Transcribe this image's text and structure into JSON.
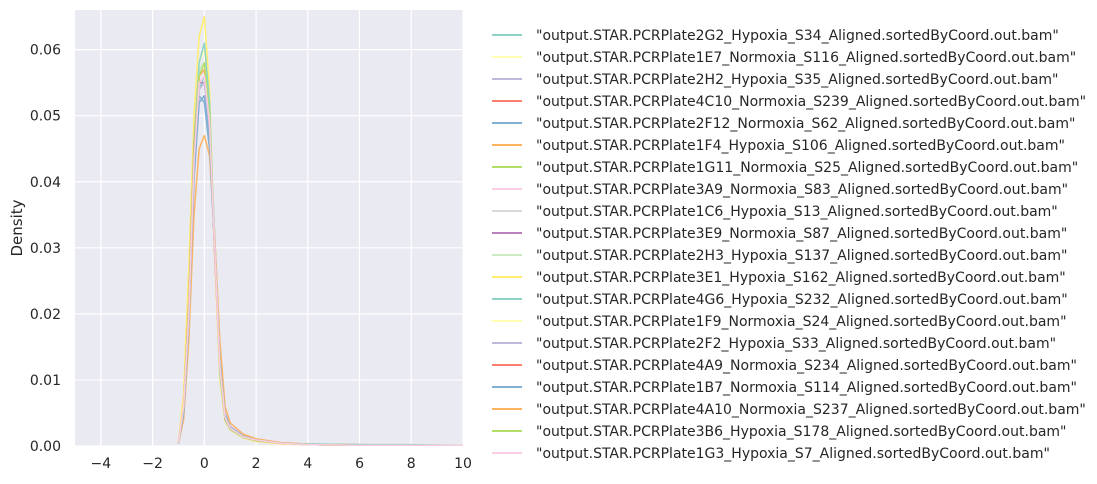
{
  "chart_data": {
    "type": "line",
    "title": "",
    "xlabel": "",
    "ylabel": "Density",
    "xlim": [
      -5,
      10
    ],
    "ylim": [
      0,
      0.066
    ],
    "x_ticks": [
      -4,
      -2,
      0,
      2,
      4,
      6,
      8,
      10
    ],
    "y_ticks": [
      0.0,
      0.01,
      0.02,
      0.03,
      0.04,
      0.05,
      0.06
    ],
    "y_tick_labels": [
      "0.00",
      "0.01",
      "0.02",
      "0.03",
      "0.04",
      "0.05",
      "0.06"
    ],
    "x_tick_labels": [
      "−4",
      "−2",
      "0",
      "2",
      "4",
      "6",
      "8",
      "10"
    ],
    "grid": true,
    "background": "#eaeaf2",
    "legend_position": "outside-right",
    "series": [
      {
        "name": "\"output.STAR.PCRPlate2G2_Hypoxia_S34_Aligned.sortedByCoord.out.bam\"",
        "color": "#8dd3c7",
        "x": [
          -1.0,
          -0.8,
          -0.6,
          -0.4,
          -0.2,
          0.0,
          0.2,
          0.4,
          0.6,
          0.8,
          1.0,
          1.5,
          2.0,
          3.0,
          4.0,
          6.0,
          8.0,
          10.0
        ],
        "y": [
          0.0005,
          0.006,
          0.02,
          0.042,
          0.054,
          0.056,
          0.05,
          0.032,
          0.013,
          0.0045,
          0.0028,
          0.0015,
          0.0009,
          0.0004,
          0.0003,
          0.0002,
          0.00015,
          0.0001
        ]
      },
      {
        "name": "\"output.STAR.PCRPlate1E7_Normoxia_S116_Aligned.sortedByCoord.out.bam\"",
        "color": "#ffffb3",
        "x": [
          -1.0,
          -0.8,
          -0.6,
          -0.4,
          -0.2,
          0.0,
          0.2,
          0.4,
          0.6,
          0.8,
          1.0,
          1.5,
          2.0,
          3.0,
          4.0,
          6.0,
          8.0,
          10.0
        ],
        "y": [
          0.0006,
          0.007,
          0.024,
          0.046,
          0.058,
          0.06,
          0.052,
          0.03,
          0.011,
          0.004,
          0.0025,
          0.0013,
          0.0008,
          0.0004,
          0.0002,
          0.0001,
          0.0001,
          0.0001
        ]
      },
      {
        "name": "\"output.STAR.PCRPlate2H2_Hypoxia_S35_Aligned.sortedByCoord.out.bam\"",
        "color": "#bebada",
        "x": [
          -1.0,
          -0.8,
          -0.6,
          -0.4,
          -0.2,
          0.0,
          0.2,
          0.4,
          0.6,
          0.8,
          1.0,
          1.5,
          2.0,
          3.0,
          4.0,
          6.0,
          8.0,
          10.0
        ],
        "y": [
          0.0004,
          0.005,
          0.018,
          0.04,
          0.052,
          0.053,
          0.047,
          0.031,
          0.014,
          0.005,
          0.003,
          0.0016,
          0.001,
          0.0005,
          0.0003,
          0.0002,
          0.0001,
          0.0001
        ]
      },
      {
        "name": "\"output.STAR.PCRPlate4C10_Normoxia_S239_Aligned.sortedByCoord.out.bam\"",
        "color": "#fb8072",
        "x": [
          -1.0,
          -0.8,
          -0.6,
          -0.4,
          -0.2,
          0.0,
          0.2,
          0.4,
          0.6,
          0.8,
          1.0,
          1.5,
          2.0,
          3.0,
          4.0,
          6.0,
          8.0,
          10.0
        ],
        "y": [
          0.0005,
          0.006,
          0.021,
          0.044,
          0.056,
          0.057,
          0.049,
          0.029,
          0.012,
          0.0042,
          0.0026,
          0.0014,
          0.0009,
          0.0004,
          0.0002,
          0.0001,
          0.0001,
          0.0001
        ]
      },
      {
        "name": "\"output.STAR.PCRPlate2F12_Normoxia_S62_Aligned.sortedByCoord.out.bam\"",
        "color": "#80b1d3",
        "x": [
          -1.0,
          -0.8,
          -0.6,
          -0.4,
          -0.2,
          0.0,
          0.2,
          0.4,
          0.6,
          0.8,
          1.0,
          1.5,
          2.0,
          3.0,
          4.0,
          6.0,
          8.0,
          10.0
        ],
        "y": [
          0.0004,
          0.005,
          0.019,
          0.041,
          0.053,
          0.052,
          0.045,
          0.03,
          0.013,
          0.0048,
          0.0027,
          0.0015,
          0.0009,
          0.0004,
          0.0002,
          0.0001,
          0.0001,
          0.0001
        ]
      },
      {
        "name": "\"output.STAR.PCRPlate1F4_Hypoxia_S106_Aligned.sortedByCoord.out.bam\"",
        "color": "#fdb462",
        "x": [
          -1.0,
          -0.8,
          -0.6,
          -0.4,
          -0.2,
          0.0,
          0.2,
          0.4,
          0.6,
          0.8,
          1.0,
          1.5,
          2.0,
          3.0,
          4.0,
          6.0,
          8.0,
          10.0
        ],
        "y": [
          0.0004,
          0.004,
          0.016,
          0.035,
          0.045,
          0.047,
          0.044,
          0.032,
          0.016,
          0.006,
          0.0035,
          0.0018,
          0.0011,
          0.0005,
          0.0003,
          0.0002,
          0.0001,
          0.0001
        ]
      },
      {
        "name": "\"output.STAR.PCRPlate1G11_Normoxia_S25_Aligned.sortedByCoord.out.bam\"",
        "color": "#b3de69",
        "x": [
          -1.0,
          -0.8,
          -0.6,
          -0.4,
          -0.2,
          0.0,
          0.2,
          0.4,
          0.6,
          0.8,
          1.0,
          1.5,
          2.0,
          3.0,
          4.0,
          6.0,
          8.0,
          10.0
        ],
        "y": [
          0.0005,
          0.006,
          0.022,
          0.045,
          0.057,
          0.058,
          0.05,
          0.03,
          0.012,
          0.0042,
          0.0026,
          0.0014,
          0.0008,
          0.0004,
          0.0002,
          0.0001,
          0.0001,
          0.0001
        ]
      },
      {
        "name": "\"output.STAR.PCRPlate3A9_Normoxia_S83_Aligned.sortedByCoord.out.bam\"",
        "color": "#fccde5",
        "x": [
          -1.0,
          -0.8,
          -0.6,
          -0.4,
          -0.2,
          0.0,
          0.2,
          0.4,
          0.6,
          0.8,
          1.0,
          1.5,
          2.0,
          3.0,
          4.0,
          6.0,
          8.0,
          10.0
        ],
        "y": [
          0.0005,
          0.006,
          0.02,
          0.043,
          0.055,
          0.056,
          0.049,
          0.031,
          0.013,
          0.0045,
          0.0027,
          0.0015,
          0.0009,
          0.0004,
          0.0002,
          0.0001,
          0.0001,
          0.0001
        ]
      },
      {
        "name": "\"output.STAR.PCRPlate1C6_Hypoxia_S13_Aligned.sortedByCoord.out.bam\"",
        "color": "#d9d9d9",
        "x": [
          -1.0,
          -0.8,
          -0.6,
          -0.4,
          -0.2,
          0.0,
          0.2,
          0.4,
          0.6,
          0.8,
          1.0,
          1.5,
          2.0,
          3.0,
          4.0,
          6.0,
          8.0,
          10.0
        ],
        "y": [
          0.0005,
          0.005,
          0.019,
          0.042,
          0.054,
          0.055,
          0.048,
          0.031,
          0.013,
          0.0046,
          0.0028,
          0.0015,
          0.0009,
          0.0004,
          0.0002,
          0.0001,
          0.0001,
          0.0001
        ]
      },
      {
        "name": "\"output.STAR.PCRPlate3E9_Normoxia_S87_Aligned.sortedByCoord.out.bam\"",
        "color": "#bc80bd",
        "x": [
          -1.0,
          -0.8,
          -0.6,
          -0.4,
          -0.2,
          0.0,
          0.2,
          0.4,
          0.6,
          0.8,
          1.0,
          1.5,
          2.0,
          3.0,
          4.0,
          6.0,
          8.0,
          10.0
        ],
        "y": [
          0.0005,
          0.006,
          0.021,
          0.044,
          0.055,
          0.055,
          0.048,
          0.03,
          0.012,
          0.0044,
          0.0027,
          0.0014,
          0.0009,
          0.0004,
          0.0002,
          0.0001,
          0.0001,
          0.0001
        ]
      },
      {
        "name": "\"output.STAR.PCRPlate2H3_Hypoxia_S137_Aligned.sortedByCoord.out.bam\"",
        "color": "#ccebc5",
        "x": [
          -1.0,
          -0.8,
          -0.6,
          -0.4,
          -0.2,
          0.0,
          0.2,
          0.4,
          0.6,
          0.8,
          1.0,
          1.5,
          2.0,
          3.0,
          4.0,
          6.0,
          8.0,
          10.0
        ],
        "y": [
          0.0005,
          0.006,
          0.021,
          0.045,
          0.057,
          0.058,
          0.05,
          0.03,
          0.012,
          0.0043,
          0.0026,
          0.0014,
          0.0008,
          0.0004,
          0.0002,
          0.0001,
          0.0001,
          0.0001
        ]
      },
      {
        "name": "\"output.STAR.PCRPlate3E1_Hypoxia_S162_Aligned.sortedByCoord.out.bam\"",
        "color": "#ffed6f",
        "x": [
          -1.0,
          -0.8,
          -0.6,
          -0.4,
          -0.2,
          0.0,
          0.2,
          0.4,
          0.6,
          0.8,
          1.0,
          1.5,
          2.0,
          3.0,
          4.0,
          6.0,
          8.0,
          10.0
        ],
        "y": [
          0.0006,
          0.008,
          0.027,
          0.05,
          0.062,
          0.065,
          0.054,
          0.029,
          0.01,
          0.0038,
          0.0024,
          0.0012,
          0.0007,
          0.0003,
          0.0002,
          0.0001,
          0.0001,
          0.0001
        ]
      },
      {
        "name": "\"output.STAR.PCRPlate4G6_Hypoxia_S232_Aligned.sortedByCoord.out.bam\"",
        "color": "#8dd3c7",
        "x": [
          -1.0,
          -0.8,
          -0.6,
          -0.4,
          -0.2,
          0.0,
          0.2,
          0.4,
          0.6,
          0.8,
          1.0,
          1.5,
          2.0,
          3.0,
          4.0,
          6.0,
          8.0,
          10.0
        ],
        "y": [
          0.0005,
          0.006,
          0.022,
          0.046,
          0.058,
          0.061,
          0.052,
          0.03,
          0.011,
          0.004,
          0.0025,
          0.0013,
          0.0008,
          0.0004,
          0.0003,
          0.0002,
          0.0002,
          0.0001
        ]
      },
      {
        "name": "\"output.STAR.PCRPlate1F9_Normoxia_S24_Aligned.sortedByCoord.out.bam\"",
        "color": "#ffffb3",
        "x": [
          -1.0,
          -0.8,
          -0.6,
          -0.4,
          -0.2,
          0.0,
          0.2,
          0.4,
          0.6,
          0.8,
          1.0,
          1.5,
          2.0,
          3.0,
          4.0,
          6.0,
          8.0,
          10.0
        ],
        "y": [
          0.0005,
          0.006,
          0.021,
          0.044,
          0.056,
          0.057,
          0.049,
          0.03,
          0.012,
          0.0043,
          0.0026,
          0.0014,
          0.0008,
          0.0004,
          0.0002,
          0.0001,
          0.0001,
          0.0001
        ]
      },
      {
        "name": "\"output.STAR.PCRPlate2F2_Hypoxia_S33_Aligned.sortedByCoord.out.bam\"",
        "color": "#bebada",
        "x": [
          -1.0,
          -0.8,
          -0.6,
          -0.4,
          -0.2,
          0.0,
          0.2,
          0.4,
          0.6,
          0.8,
          1.0,
          1.5,
          2.0,
          3.0,
          4.0,
          6.0,
          8.0,
          10.0
        ],
        "y": [
          0.0005,
          0.005,
          0.019,
          0.042,
          0.054,
          0.055,
          0.048,
          0.031,
          0.013,
          0.0046,
          0.0028,
          0.0015,
          0.0009,
          0.0004,
          0.0002,
          0.0001,
          0.0001,
          0.0001
        ]
      },
      {
        "name": "\"output.STAR.PCRPlate4A9_Normoxia_S234_Aligned.sortedByCoord.out.bam\"",
        "color": "#fb8072",
        "x": [
          -1.0,
          -0.8,
          -0.6,
          -0.4,
          -0.2,
          0.0,
          0.2,
          0.4,
          0.6,
          0.8,
          1.0,
          1.5,
          2.0,
          3.0,
          4.0,
          6.0,
          8.0,
          10.0
        ],
        "y": [
          0.0005,
          0.006,
          0.022,
          0.045,
          0.056,
          0.057,
          0.049,
          0.029,
          0.012,
          0.0042,
          0.0026,
          0.0014,
          0.0008,
          0.0004,
          0.0002,
          0.0001,
          0.0001,
          0.0001
        ]
      },
      {
        "name": "\"output.STAR.PCRPlate1B7_Normoxia_S114_Aligned.sortedByCoord.out.bam\"",
        "color": "#80b1d3",
        "x": [
          -1.0,
          -0.8,
          -0.6,
          -0.4,
          -0.2,
          0.0,
          0.2,
          0.4,
          0.6,
          0.8,
          1.0,
          1.5,
          2.0,
          3.0,
          4.0,
          6.0,
          8.0,
          10.0
        ],
        "y": [
          0.0004,
          0.005,
          0.019,
          0.041,
          0.052,
          0.053,
          0.046,
          0.03,
          0.013,
          0.0047,
          0.0028,
          0.0015,
          0.0009,
          0.0004,
          0.0002,
          0.0001,
          0.0001,
          0.0001
        ]
      },
      {
        "name": "\"output.STAR.PCRPlate4A10_Normoxia_S237_Aligned.sortedByCoord.out.bam\"",
        "color": "#fdb462",
        "x": [
          -1.0,
          -0.8,
          -0.6,
          -0.4,
          -0.2,
          0.0,
          0.2,
          0.4,
          0.6,
          0.8,
          1.0,
          1.5,
          2.0,
          3.0,
          4.0,
          6.0,
          8.0,
          10.0
        ],
        "y": [
          0.0005,
          0.006,
          0.021,
          0.044,
          0.056,
          0.057,
          0.049,
          0.03,
          0.012,
          0.0043,
          0.0026,
          0.0014,
          0.0008,
          0.0004,
          0.0002,
          0.0001,
          0.0001,
          0.0001
        ]
      },
      {
        "name": "\"output.STAR.PCRPlate3B6_Hypoxia_S178_Aligned.sortedByCoord.out.bam\"",
        "color": "#b3de69",
        "x": [
          -1.0,
          -0.8,
          -0.6,
          -0.4,
          -0.2,
          0.0,
          0.2,
          0.4,
          0.6,
          0.8,
          1.0,
          1.5,
          2.0,
          3.0,
          4.0,
          6.0,
          8.0,
          10.0
        ],
        "y": [
          0.0005,
          0.006,
          0.021,
          0.044,
          0.056,
          0.058,
          0.05,
          0.03,
          0.012,
          0.0043,
          0.0026,
          0.0014,
          0.0008,
          0.0004,
          0.0002,
          0.0001,
          0.0001,
          0.0001
        ]
      },
      {
        "name": "\"output.STAR.PCRPlate1G3_Hypoxia_S7_Aligned.sortedByCoord.out.bam\"",
        "color": "#fccde5",
        "x": [
          -1.0,
          -0.8,
          -0.6,
          -0.4,
          -0.2,
          0.0,
          0.2,
          0.4,
          0.6,
          0.8,
          1.0,
          1.5,
          2.0,
          3.0,
          4.0,
          6.0,
          8.0,
          10.0
        ],
        "y": [
          0.0005,
          0.006,
          0.02,
          0.043,
          0.055,
          0.056,
          0.049,
          0.03,
          0.012,
          0.0044,
          0.0027,
          0.0014,
          0.0009,
          0.0004,
          0.0002,
          0.0001,
          0.0001,
          0.0001
        ]
      }
    ]
  }
}
